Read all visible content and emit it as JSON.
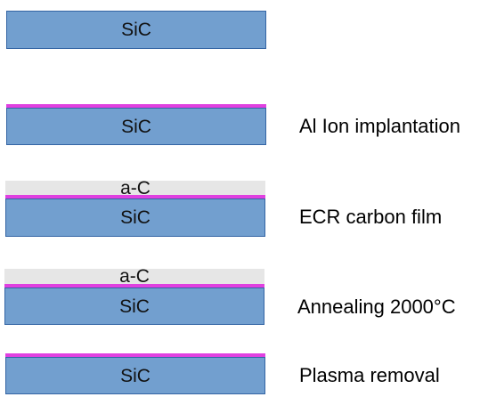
{
  "colors": {
    "substrate": "#729fcf",
    "substrate_border": "#3465a4",
    "implant_layer": "#e040e0",
    "carbon_film": "#e6e6e6"
  },
  "stacks": [
    {
      "substrate_label": "SiC",
      "film_label": "",
      "step_label": ""
    },
    {
      "substrate_label": "SiC",
      "film_label": "",
      "step_label": "Al Ion implantation"
    },
    {
      "substrate_label": "SiC",
      "film_label": "a-C",
      "step_label": "ECR carbon film"
    },
    {
      "substrate_label": "SiC",
      "film_label": "a-C",
      "step_label": "Annealing 2000°C"
    },
    {
      "substrate_label": "SiC",
      "film_label": "",
      "step_label": "Plasma removal"
    }
  ]
}
